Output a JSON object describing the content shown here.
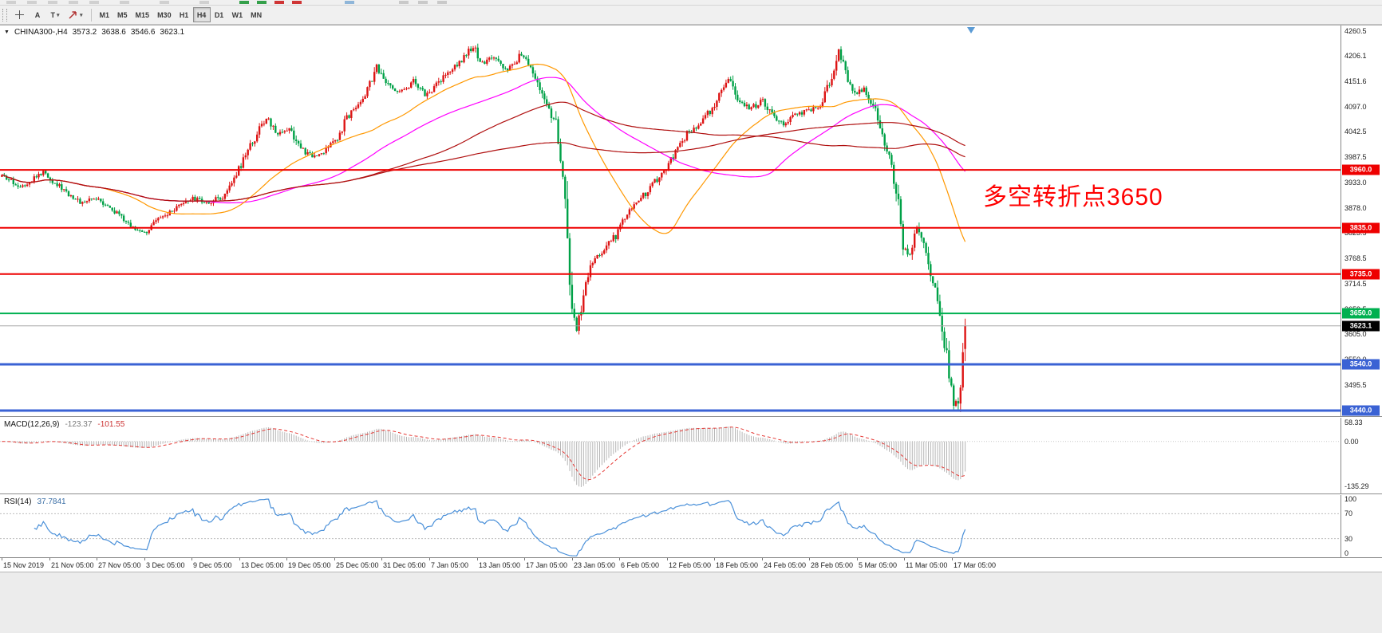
{
  "colors": {
    "candle_up": "#dd1414",
    "candle_down": "#00a147",
    "macd_hist": "#b5b5b5",
    "macd_signal": "#e53935",
    "rsi_line": "#4a90d9",
    "current_line": "#a6a6a6",
    "tag_current_bg": "#000000"
  },
  "toolbar": {
    "tools": [
      {
        "name": "crosshair-tool",
        "icon": "crosshair"
      },
      {
        "name": "arrow-label-tool",
        "label": "A"
      },
      {
        "name": "text-tool",
        "label": "T",
        "caret": true
      },
      {
        "name": "arrow-objects-tool",
        "icon": "arrow",
        "caret": true
      }
    ],
    "timeframes": [
      "M1",
      "M5",
      "M15",
      "M30",
      "H1",
      "H4",
      "D1",
      "W1",
      "MN"
    ],
    "active_timeframe": "H4"
  },
  "chart": {
    "menu_icon": "▼",
    "header": {
      "symbol_period": "CHINA300-,H4",
      "open": "3573.2",
      "high": "3638.6",
      "low": "3546.6",
      "close": "3623.1"
    },
    "annotation": {
      "text": "多空转折点3650",
      "color": "#ff0000"
    },
    "current_price_tag": "3623.1",
    "price_axis_labels": [
      "4260.5",
      "4206.1",
      "4151.6",
      "4097.0",
      "4042.5",
      "3987.5",
      "3933.0",
      "3878.0",
      "3823.5",
      "3768.5",
      "3714.5",
      "3659.5",
      "3605.0",
      "3550.0",
      "3495.5"
    ],
    "time_axis_labels": [
      "15 Nov 2019",
      "21 Nov 05:00",
      "27 Nov 05:00",
      "3 Dec 05:00",
      "9 Dec 05:00",
      "13 Dec 05:00",
      "19 Dec 05:00",
      "25 Dec 05:00",
      "31 Dec 05:00",
      "7 Jan 05:00",
      "13 Jan 05:00",
      "17 Jan 05:00",
      "23 Jan 05:00",
      "6 Feb 05:00",
      "12 Feb 05:00",
      "18 Feb 05:00",
      "24 Feb 05:00",
      "28 Feb 05:00",
      "5 Mar 05:00",
      "11 Mar 05:00",
      "17 Mar 05:00"
    ]
  },
  "macd": {
    "label": "MACD(12,26,9)",
    "value_main": "-123.37",
    "value_signal": "-101.55",
    "axis_labels": [
      "58.33",
      "0.00",
      "-135.29"
    ]
  },
  "rsi": {
    "label": "RSI(14)",
    "value": "37.7841",
    "axis_labels": [
      "100",
      "70",
      "30",
      "0"
    ]
  },
  "chart_data": {
    "type": "candlestick",
    "symbol": "CHINA300",
    "period": "H4",
    "ohlc_current": {
      "open": 3573.2,
      "high": 3638.6,
      "low": 3546.6,
      "close": 3623.1
    },
    "bar_count": 420,
    "y_range": [
      3428,
      4272
    ],
    "levels": [
      {
        "price": 3960.0,
        "color": "#ee0000",
        "tag": "3960.0",
        "width": 2
      },
      {
        "price": 3835.0,
        "color": "#ee0000",
        "tag": "3835.0",
        "width": 2
      },
      {
        "price": 3735.0,
        "color": "#ee0000",
        "tag": "3735.0",
        "width": 2
      },
      {
        "price": 3650.0,
        "color": "#00b050",
        "tag": "3650.0",
        "width": 2
      },
      {
        "price": 3540.0,
        "color": "#3a62d4",
        "tag": "3540.0",
        "width": 3
      },
      {
        "price": 3440.0,
        "color": "#3a62d4",
        "tag": "3440.0",
        "width": 3
      }
    ],
    "indicators": {
      "overlays": [
        {
          "type": "sma",
          "period": 89,
          "color": "#ff00ff"
        },
        {
          "type": "sma",
          "period": 45,
          "color": "#ff9800"
        },
        {
          "type": "sma",
          "period": 144,
          "color": "#b01010"
        },
        {
          "type": "sma",
          "period": 250,
          "color": "#b01010"
        }
      ],
      "macd": {
        "fast": 12,
        "slow": 26,
        "signal": 9,
        "current_main": -123.37,
        "current_signal": -101.55,
        "scale": {
          "max": 72,
          "min": -158
        }
      },
      "rsi": {
        "period": 14,
        "current": 37.7841,
        "levels": [
          70,
          30
        ]
      }
    },
    "price_anchors": [
      [
        0,
        3945
      ],
      [
        8,
        3925
      ],
      [
        18,
        3955
      ],
      [
        26,
        3920
      ],
      [
        34,
        3890
      ],
      [
        42,
        3900
      ],
      [
        50,
        3865
      ],
      [
        58,
        3830
      ],
      [
        63,
        3828
      ],
      [
        68,
        3852
      ],
      [
        75,
        3872
      ],
      [
        82,
        3898
      ],
      [
        90,
        3890
      ],
      [
        97,
        3905
      ],
      [
        101,
        3945
      ],
      [
        106,
        3990
      ],
      [
        111,
        4040
      ],
      [
        115,
        4072
      ],
      [
        120,
        4038
      ],
      [
        125,
        4052
      ],
      [
        130,
        4005
      ],
      [
        135,
        3988
      ],
      [
        141,
        4002
      ],
      [
        146,
        4032
      ],
      [
        151,
        4080
      ],
      [
        158,
        4122
      ],
      [
        163,
        4185
      ],
      [
        166,
        4150
      ],
      [
        170,
        4135
      ],
      [
        174,
        4130
      ],
      [
        179,
        4152
      ],
      [
        184,
        4122
      ],
      [
        189,
        4142
      ],
      [
        194,
        4172
      ],
      [
        200,
        4198
      ],
      [
        205,
        4228
      ],
      [
        209,
        4190
      ],
      [
        214,
        4202
      ],
      [
        220,
        4172
      ],
      [
        226,
        4212
      ],
      [
        232,
        4162
      ],
      [
        237,
        4105
      ],
      [
        241,
        4058
      ],
      [
        244,
        3950
      ],
      [
        246,
        3800
      ],
      [
        248,
        3650
      ],
      [
        250,
        3608
      ],
      [
        253,
        3698
      ],
      [
        257,
        3758
      ],
      [
        262,
        3788
      ],
      [
        267,
        3818
      ],
      [
        272,
        3868
      ],
      [
        278,
        3898
      ],
      [
        283,
        3928
      ],
      [
        288,
        3958
      ],
      [
        293,
        3998
      ],
      [
        298,
        4038
      ],
      [
        303,
        4058
      ],
      [
        308,
        4088
      ],
      [
        313,
        4128
      ],
      [
        317,
        4158
      ],
      [
        320,
        4112
      ],
      [
        326,
        4092
      ],
      [
        331,
        4112
      ],
      [
        335,
        4082
      ],
      [
        340,
        4052
      ],
      [
        345,
        4078
      ],
      [
        351,
        4088
      ],
      [
        356,
        4098
      ],
      [
        360,
        4148
      ],
      [
        364,
        4218
      ],
      [
        368,
        4152
      ],
      [
        372,
        4122
      ],
      [
        375,
        4140
      ],
      [
        379,
        4098
      ],
      [
        382,
        4058
      ],
      [
        385,
        4002
      ],
      [
        389,
        3920
      ],
      [
        392,
        3798
      ],
      [
        395,
        3772
      ],
      [
        398,
        3832
      ],
      [
        402,
        3778
      ],
      [
        405,
        3722
      ],
      [
        409,
        3622
      ],
      [
        412,
        3518
      ],
      [
        414,
        3462
      ],
      [
        416,
        3448
      ],
      [
        418,
        3565
      ],
      [
        419,
        3623
      ]
    ]
  }
}
